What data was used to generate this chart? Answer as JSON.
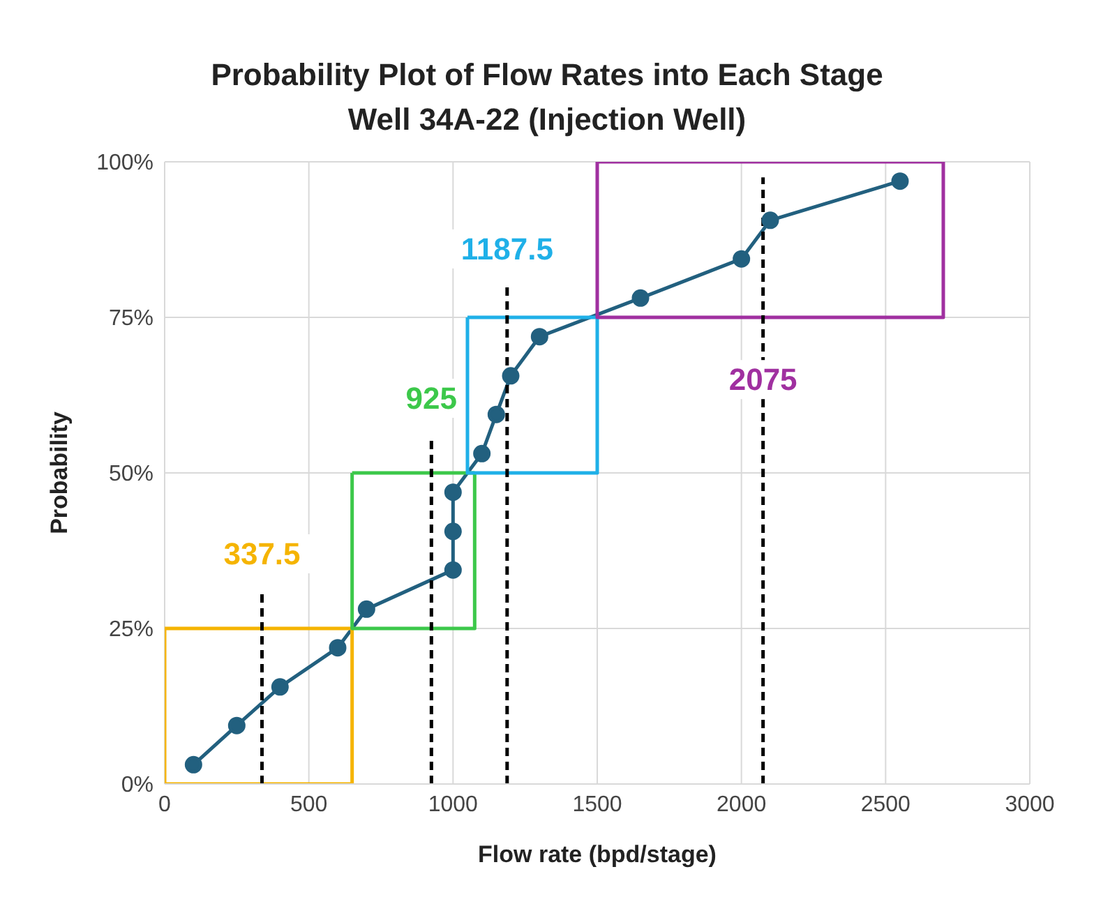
{
  "chart_data": {
    "type": "line",
    "title": "Probability Plot of Flow Rates into Each Stage",
    "subtitle": "Well 34A-22 (Injection Well)",
    "xlabel": "Flow rate (bpd/stage)",
    "ylabel": "Probability",
    "xlim": [
      0,
      3000
    ],
    "xticks": [
      0,
      500,
      1000,
      1500,
      2000,
      2500,
      3000
    ],
    "ylim": [
      0,
      100
    ],
    "yticks": [
      {
        "value": 0,
        "label": "0%"
      },
      {
        "value": 25,
        "label": "25%"
      },
      {
        "value": 50,
        "label": "50%"
      },
      {
        "value": 75,
        "label": "75%"
      },
      {
        "value": 100,
        "label": "100%"
      }
    ],
    "grid": true,
    "legend": false,
    "series": [
      {
        "color": "#22607f",
        "marker": "circle",
        "line_style": "solid",
        "x": [
          100,
          250,
          400,
          600,
          700,
          1000,
          1000,
          1000,
          1100,
          1150,
          1200,
          1300,
          1650,
          2000,
          2100,
          2550
        ],
        "values": [
          3.1,
          9.4,
          15.6,
          21.9,
          28.1,
          34.4,
          40.6,
          46.9,
          53.1,
          59.4,
          65.6,
          71.9,
          78.1,
          84.4,
          90.6,
          96.9
        ]
      },
      {
        "color": "#f5b400",
        "marker": "none",
        "line_style": "solid",
        "x": [
          0,
          0,
          650,
          650
        ],
        "values": [
          25,
          0,
          0,
          25
        ]
      },
      {
        "color": "#f5b400",
        "marker": "none",
        "line_style": "solid",
        "x": [
          0,
          650
        ],
        "values": [
          25,
          25
        ]
      },
      {
        "color": "#3cc84a",
        "marker": "none",
        "line_style": "solid",
        "x": [
          650,
          650,
          1075,
          1075
        ],
        "values": [
          50,
          25,
          25,
          50
        ]
      },
      {
        "color": "#3cc84a",
        "marker": "none",
        "line_style": "solid",
        "x": [
          650,
          1075
        ],
        "values": [
          50,
          50
        ]
      },
      {
        "color": "#1fb0e8",
        "marker": "none",
        "line_style": "solid",
        "x": [
          1050,
          1050,
          1500,
          1500
        ],
        "values": [
          75,
          50,
          50,
          75
        ]
      },
      {
        "color": "#1fb0e8",
        "marker": "none",
        "line_style": "solid",
        "x": [
          1050,
          1500
        ],
        "values": [
          75,
          75
        ]
      },
      {
        "color": "#a030a0",
        "marker": "none",
        "line_style": "solid",
        "x": [
          1500,
          1500,
          2700,
          2700
        ],
        "values": [
          100,
          75,
          75,
          100
        ]
      },
      {
        "color": "#a030a0",
        "marker": "none",
        "line_style": "solid",
        "x": [
          1500,
          2700
        ],
        "values": [
          100,
          100
        ]
      },
      {
        "color": "#000000",
        "marker": "none",
        "line_style": "dashed",
        "x": [
          337.5,
          337.5
        ],
        "values": [
          0,
          31
        ]
      },
      {
        "color": "#000000",
        "marker": "none",
        "line_style": "dashed",
        "x": [
          925,
          925
        ],
        "values": [
          0,
          56
        ]
      },
      {
        "color": "#000000",
        "marker": "none",
        "line_style": "dashed",
        "x": [
          1187.5,
          1187.5
        ],
        "values": [
          0,
          80
        ]
      },
      {
        "color": "#000000",
        "marker": "none",
        "line_style": "dashed",
        "x": [
          2075,
          2075
        ],
        "values": [
          0,
          97.5
        ]
      }
    ],
    "annotations": [
      "337.5",
      "925",
      "1187.5",
      "2075"
    ]
  }
}
